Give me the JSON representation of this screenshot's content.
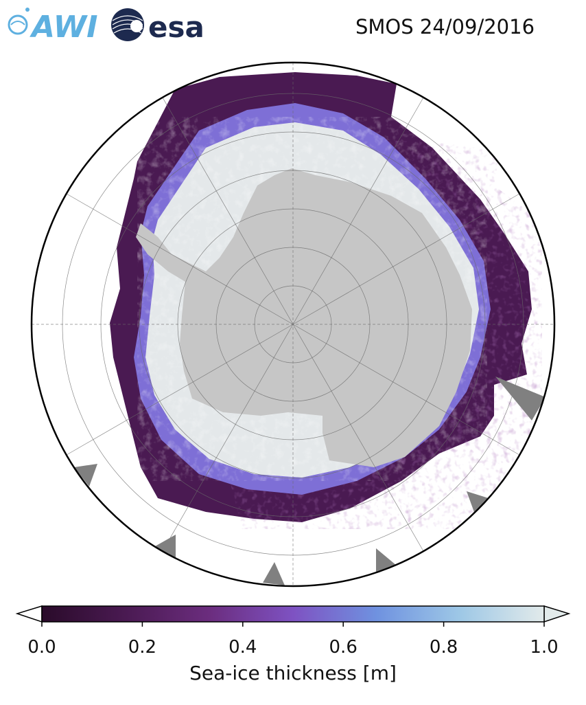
{
  "header": {
    "title": "SMOS 24/09/2016",
    "logo_awi_text": "AWI",
    "logo_esa_text": "esa"
  },
  "colors": {
    "land": "#c6c6c6",
    "no_data": "#808080",
    "ice_thin": "#3a0f3a",
    "ice_mid": "#6e4fa8",
    "ice_thick": "#eaeaea",
    "awi_blue": "#5eb0e0",
    "esa_navy": "#1d2a4f"
  },
  "map": {
    "projection": "south-polar-stereographic",
    "gridlines": "on"
  },
  "colorbar": {
    "label": "Sea-ice thickness [m]",
    "min": 0.0,
    "max": 1.0,
    "ticks": [
      "0.0",
      "0.2",
      "0.4",
      "0.6",
      "0.8",
      "1.0"
    ],
    "extend": "both",
    "colormap": [
      "#2a0b2a",
      "#4a1a52",
      "#6b2d7e",
      "#7e52c2",
      "#6f92e0",
      "#9ec8e6",
      "#e2eaea"
    ]
  }
}
